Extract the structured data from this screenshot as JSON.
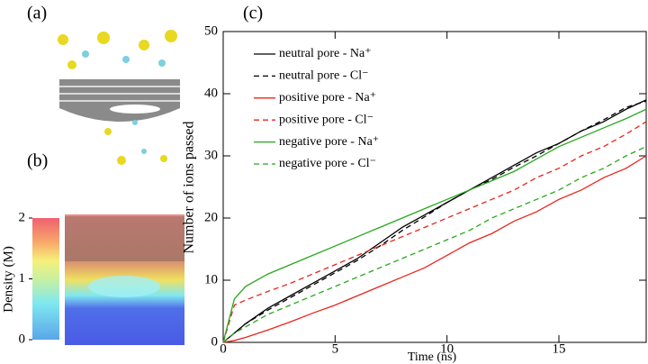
{
  "panels": {
    "a": "(a)",
    "b": "(b)"
  },
  "colorbar": {
    "label": "Density (M)",
    "lim": [
      0,
      2
    ],
    "ticks": [
      0,
      1,
      2
    ]
  },
  "chart_data": {
    "type": "line",
    "title": "(c)",
    "xlabel": "Time (ns)",
    "ylabel": "Number of ions passed",
    "x": [
      0,
      0.5,
      1,
      2,
      3,
      4,
      5,
      6,
      7,
      8,
      9,
      10,
      11,
      12,
      13,
      14,
      15,
      16,
      17,
      18,
      18.9
    ],
    "xlim": [
      0,
      18.9
    ],
    "xticks": [
      0,
      5,
      10,
      15
    ],
    "ylim": [
      0,
      50
    ],
    "yticks": [
      0,
      10,
      20,
      30,
      40,
      50
    ],
    "series": [
      {
        "name": "neutral pore - Na⁺",
        "color": "#000000",
        "style": "solid",
        "values": [
          0,
          1.5,
          3,
          5.5,
          7.5,
          9.5,
          11.5,
          13.5,
          16,
          18.5,
          20.5,
          22.5,
          24.5,
          26.5,
          28.5,
          30.5,
          32,
          34,
          35.5,
          37.5,
          39
        ]
      },
      {
        "name": "neutral pore - Cl⁻",
        "color": "#000000",
        "style": "dashed",
        "values": [
          0,
          1.5,
          3,
          5.2,
          7.2,
          9.2,
          11.2,
          13.2,
          15.5,
          18,
          20.2,
          22.5,
          24.5,
          26.2,
          28.2,
          30,
          32,
          34,
          35.8,
          37.8,
          38.8
        ]
      },
      {
        "name": "positive pore - Na⁺",
        "color": "#e8251c",
        "style": "solid",
        "values": [
          0,
          0.3,
          0.8,
          2,
          3.3,
          4.7,
          6,
          7.5,
          9,
          10.5,
          12,
          14,
          16,
          17.5,
          19.5,
          21,
          23,
          24.5,
          26.5,
          28,
          30
        ]
      },
      {
        "name": "positive pore - Cl⁻",
        "color": "#e8251c",
        "style": "dashed",
        "values": [
          0,
          6,
          6.8,
          8.2,
          9.5,
          11,
          12.5,
          14,
          15.5,
          17,
          18.5,
          20,
          21.5,
          23,
          24.5,
          26.5,
          28,
          30,
          31.5,
          33.5,
          35.5
        ]
      },
      {
        "name": "negative pore - Na⁺",
        "color": "#27a81c",
        "style": "solid",
        "values": [
          0,
          7,
          9,
          11,
          12.5,
          14,
          15.5,
          17,
          18.5,
          20,
          21.5,
          23,
          24.5,
          26,
          27.5,
          29.5,
          31.5,
          33,
          34.5,
          36,
          37.5
        ]
      },
      {
        "name": "negative pore - Cl⁻",
        "color": "#27a81c",
        "style": "dashed",
        "values": [
          0,
          1.5,
          2.5,
          4.5,
          6,
          7.5,
          9,
          10.5,
          12,
          13.5,
          15,
          16.5,
          18,
          20,
          21.5,
          23,
          24.5,
          26.5,
          28,
          30,
          31.5
        ]
      }
    ]
  }
}
